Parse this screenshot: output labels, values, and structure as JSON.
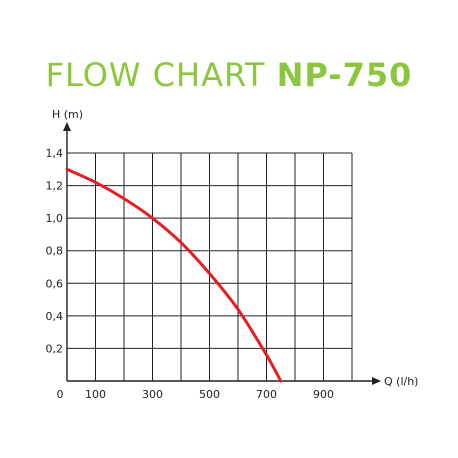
{
  "title": {
    "main": "FLOW CHART",
    "model": "NP-750"
  },
  "colors": {
    "title": "#8cc63f",
    "curve": "#e31e24",
    "grid": "#222222"
  },
  "chart_data": {
    "type": "line",
    "title": "FLOW CHART NP-750",
    "xlabel": "Q (l/h)",
    "ylabel": "H (m)",
    "xlim": [
      0,
      1000
    ],
    "ylim": [
      0,
      1.4
    ],
    "grid": true,
    "x_ticks": [
      "0",
      "100",
      "300",
      "500",
      "700",
      "900"
    ],
    "x_tick_values": [
      0,
      100,
      300,
      500,
      700,
      900
    ],
    "y_ticks": [
      "0,2",
      "0,4",
      "0,6",
      "0,8",
      "1,0",
      "1,2",
      "1,4"
    ],
    "y_tick_values": [
      0.2,
      0.4,
      0.6,
      0.8,
      1.0,
      1.2,
      1.4
    ],
    "x_grid_step": 100,
    "y_grid_step": 0.2,
    "series": [
      {
        "x": [
          0,
          100,
          200,
          300,
          400,
          500,
          600,
          700,
          750
        ],
        "y": [
          1.3,
          1.22,
          1.12,
          1.0,
          0.85,
          0.66,
          0.44,
          0.16,
          0
        ]
      }
    ]
  }
}
